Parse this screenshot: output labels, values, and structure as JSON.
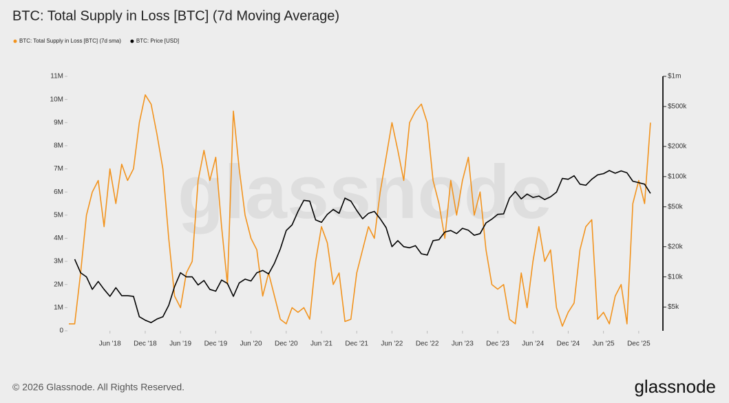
{
  "chart_data": {
    "type": "line",
    "title": "BTC: Total Supply in Loss [BTC] (7d Moving Average)",
    "watermark": "glassnode",
    "footer": "© 2026 Glassnode. All Rights Reserved.",
    "logo": "glassnode",
    "legend": "top-left",
    "grid": false,
    "y2_scale": "log",
    "x": [
      "2017-11",
      "2017-12",
      "2018-01",
      "2018-02",
      "2018-03",
      "2018-04",
      "2018-05",
      "2018-06",
      "2018-07",
      "2018-08",
      "2018-09",
      "2018-10",
      "2018-11",
      "2018-12",
      "2019-01",
      "2019-02",
      "2019-03",
      "2019-04",
      "2019-05",
      "2019-06",
      "2019-07",
      "2019-08",
      "2019-09",
      "2019-10",
      "2019-11",
      "2019-12",
      "2020-01",
      "2020-02",
      "2020-03",
      "2020-04",
      "2020-05",
      "2020-06",
      "2020-07",
      "2020-08",
      "2020-09",
      "2020-10",
      "2020-11",
      "2020-12",
      "2021-01",
      "2021-02",
      "2021-03",
      "2021-04",
      "2021-05",
      "2021-06",
      "2021-07",
      "2021-08",
      "2021-09",
      "2021-10",
      "2021-11",
      "2021-12",
      "2022-01",
      "2022-02",
      "2022-03",
      "2022-04",
      "2022-05",
      "2022-06",
      "2022-07",
      "2022-08",
      "2022-09",
      "2022-10",
      "2022-11",
      "2022-12",
      "2023-01",
      "2023-02",
      "2023-03",
      "2023-04",
      "2023-05",
      "2023-06",
      "2023-07",
      "2023-08",
      "2023-09",
      "2023-10",
      "2023-11",
      "2023-12",
      "2024-01",
      "2024-02",
      "2024-03",
      "2024-04",
      "2024-05",
      "2024-06",
      "2024-07",
      "2024-08",
      "2024-09",
      "2024-10",
      "2024-11",
      "2024-12",
      "2025-01",
      "2025-02",
      "2025-03",
      "2025-04",
      "2025-05",
      "2025-06",
      "2025-07",
      "2025-08",
      "2025-09",
      "2025-10",
      "2025-11",
      "2025-12",
      "2026-01",
      "2026-02"
    ],
    "series": [
      {
        "name": "BTC: Total Supply in Loss [BTC] (7d sma)",
        "color": "#f2931d",
        "axis": "y",
        "values": [
          300000,
          300000,
          2500000,
          5000000,
          6000000,
          6500000,
          4500000,
          7000000,
          5500000,
          7200000,
          6500000,
          7000000,
          9000000,
          10200000,
          9800000,
          8500000,
          7000000,
          4000000,
          1500000,
          1000000,
          2500000,
          3000000,
          6500000,
          7800000,
          6500000,
          7500000,
          4500000,
          2000000,
          9500000,
          7000000,
          5000000,
          4000000,
          3500000,
          1500000,
          2500000,
          1500000,
          500000,
          300000,
          1000000,
          800000,
          1000000,
          500000,
          3000000,
          4500000,
          3800000,
          2000000,
          2500000,
          400000,
          500000,
          2500000,
          3500000,
          4500000,
          4000000,
          6000000,
          7500000,
          9000000,
          7800000,
          6500000,
          9000000,
          9500000,
          9800000,
          9000000,
          6500000,
          5500000,
          4000000,
          6500000,
          5000000,
          6500000,
          7500000,
          5000000,
          6000000,
          3500000,
          2000000,
          1800000,
          2000000,
          500000,
          300000,
          2500000,
          1000000,
          3000000,
          4500000,
          3000000,
          3500000,
          1000000,
          200000,
          800000,
          1200000,
          3500000,
          4500000,
          4800000,
          500000,
          800000,
          300000,
          1500000,
          2000000,
          300000,
          5500000,
          6500000,
          5500000,
          9000000
        ]
      },
      {
        "name": "BTC: Price [USD]",
        "color": "#000000",
        "axis": "y2",
        "values": [
          null,
          15000,
          11000,
          10000,
          7500,
          9000,
          7500,
          6400,
          7800,
          6500,
          6500,
          6400,
          4000,
          3700,
          3500,
          3800,
          4000,
          5200,
          8000,
          11000,
          10000,
          10000,
          8300,
          9200,
          7500,
          7200,
          9300,
          8600,
          6400,
          8700,
          9500,
          9100,
          11000,
          11600,
          10700,
          13700,
          19000,
          29000,
          33000,
          45000,
          58000,
          57000,
          37000,
          35000,
          42000,
          47000,
          43000,
          61000,
          57000,
          46000,
          38000,
          43000,
          45000,
          38000,
          31000,
          20000,
          23000,
          20000,
          19500,
          20500,
          17000,
          16500,
          23000,
          23500,
          28000,
          29000,
          27000,
          30500,
          29200,
          26000,
          27000,
          34500,
          37700,
          42000,
          42500,
          61000,
          71000,
          60000,
          67000,
          62000,
          64000,
          59000,
          63000,
          70000,
          96000,
          94000,
          102000,
          84000,
          82000,
          94000,
          104000,
          107000,
          115000,
          108000,
          114000,
          109000,
          90000,
          87000,
          84000,
          68000
        ]
      }
    ],
    "xlim": [
      "2017-11",
      "2026-04"
    ],
    "xticks": [
      {
        "value": "2018-06",
        "label": "Jun '18"
      },
      {
        "value": "2018-12",
        "label": "Dec '18"
      },
      {
        "value": "2019-06",
        "label": "Jun '19"
      },
      {
        "value": "2019-12",
        "label": "Dec '19"
      },
      {
        "value": "2020-06",
        "label": "Jun '20"
      },
      {
        "value": "2020-12",
        "label": "Dec '20"
      },
      {
        "value": "2021-06",
        "label": "Jun '21"
      },
      {
        "value": "2021-12",
        "label": "Dec '21"
      },
      {
        "value": "2022-06",
        "label": "Jun '22"
      },
      {
        "value": "2022-12",
        "label": "Dec '22"
      },
      {
        "value": "2023-06",
        "label": "Jun '23"
      },
      {
        "value": "2023-12",
        "label": "Dec '23"
      },
      {
        "value": "2024-06",
        "label": "Jun '24"
      },
      {
        "value": "2024-12",
        "label": "Dec '24"
      },
      {
        "value": "2025-06",
        "label": "Jun '25"
      },
      {
        "value": "2025-12",
        "label": "Dec '25"
      }
    ],
    "ylim": [
      0,
      11000000
    ],
    "yticks": [
      0,
      {
        "value": 1000000,
        "label": "1M"
      },
      {
        "value": 2000000,
        "label": "2M"
      },
      {
        "value": 3000000,
        "label": "3M"
      },
      {
        "value": 4000000,
        "label": "4M"
      },
      {
        "value": 5000000,
        "label": "5M"
      },
      {
        "value": 6000000,
        "label": "6M"
      },
      {
        "value": 7000000,
        "label": "7M"
      },
      {
        "value": 8000000,
        "label": "8M"
      },
      {
        "value": 9000000,
        "label": "9M"
      },
      {
        "value": 10000000,
        "label": "10M"
      },
      {
        "value": 11000000,
        "label": "11M"
      }
    ],
    "y2lim": [
      2900,
      1000000
    ],
    "y2ticks": [
      {
        "value": 5000,
        "label": "$5k"
      },
      {
        "value": 10000,
        "label": "$10k"
      },
      {
        "value": 20000,
        "label": "$20k"
      },
      {
        "value": 50000,
        "label": "$50k"
      },
      {
        "value": 100000,
        "label": "$100k"
      },
      {
        "value": 200000,
        "label": "$200k"
      },
      {
        "value": 500000,
        "label": "$500k"
      },
      {
        "value": 1000000,
        "label": "$1m"
      }
    ]
  }
}
